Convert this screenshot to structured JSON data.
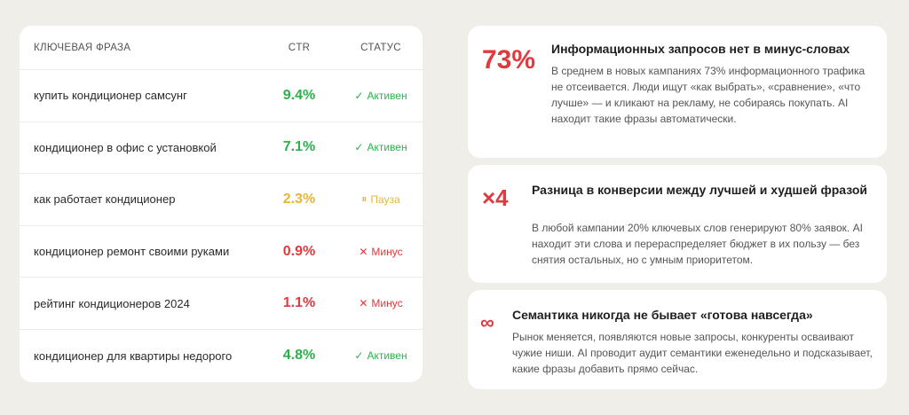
{
  "table": {
    "headers": {
      "phrase": "КЛЮЧЕВАЯ ФРАЗА",
      "ctr": "CTR",
      "status": "СТАТУС"
    },
    "rows": [
      {
        "phrase": "купить кондиционер самсунг",
        "ctr": "9.4%",
        "ctr_color": "#2bb24c",
        "status_icon": "✓",
        "status": "Активен",
        "status_color": "#2bb24c"
      },
      {
        "phrase": "кондиционер в офис с установкой",
        "ctr": "7.1%",
        "ctr_color": "#2bb24c",
        "status_icon": "✓",
        "status": "Активен",
        "status_color": "#2bb24c"
      },
      {
        "phrase": "как работает кондиционер",
        "ctr": "2.3%",
        "ctr_color": "#e8b53a",
        "status_icon": "⏸",
        "status": "Пауза",
        "status_color": "#e8b53a"
      },
      {
        "phrase": "кондиционер ремонт своими руками",
        "ctr": "0.9%",
        "ctr_color": "#e03a3e",
        "status_icon": "✕",
        "status": "Минус",
        "status_color": "#e03a3e"
      },
      {
        "phrase": "рейтинг кондиционеров 2024",
        "ctr": "1.1%",
        "ctr_color": "#e03a3e",
        "status_icon": "✕",
        "status": "Минус",
        "status_color": "#e03a3e"
      },
      {
        "phrase": "кондиционер для квартиры недорого",
        "ctr": "4.8%",
        "ctr_color": "#2bb24c",
        "status_icon": "✓",
        "status": "Активен",
        "status_color": "#2bb24c"
      }
    ]
  },
  "cards": [
    {
      "metric": "73%",
      "title": "Информационных запросов нет в минус-словах",
      "text": "В среднем в новых кампаниях 73% информационного трафика не отсеивается. Люди ищут «как выбрать», «сравнение», «что лучше» — и кликают на рекламу, не собираясь покупать. AI находит такие фразы автоматически."
    },
    {
      "metric": "×4",
      "title": "Разница в конверсии между лучшей и худшей фразой",
      "text": "В любой кампании 20% ключевых слов генерируют 80% заявок. AI находит эти слова и перераспределяет бюджет в их пользу — без снятия остальных, но с умным приоритетом."
    },
    {
      "metric": "∞",
      "title": "Семантика никогда не бывает «готова навсегда»",
      "text": "Рынок меняется, появляются новые запросы, конкуренты осваивают чужие ниши. AI проводит аудит семантики еженедельно и подсказывает, какие фразы добавить прямо сейчас."
    }
  ]
}
